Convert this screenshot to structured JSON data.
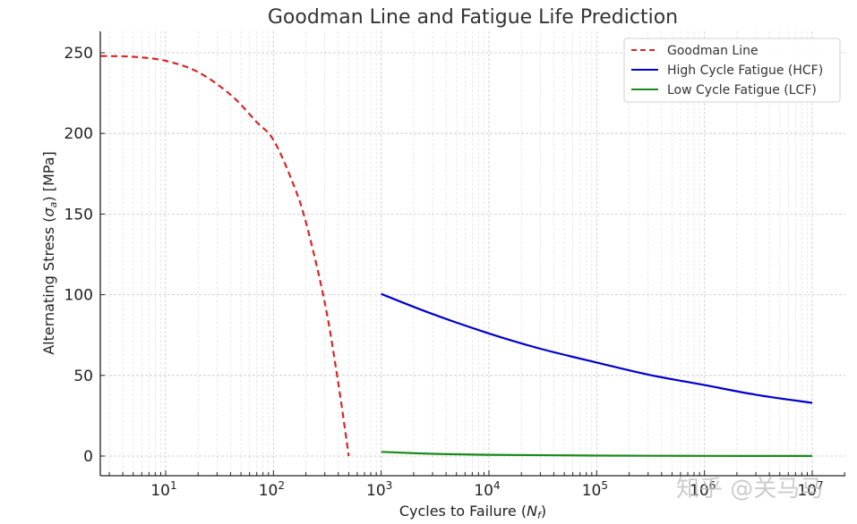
{
  "chart_data": {
    "type": "line",
    "title": "Goodman Line and Fatigue Life Prediction",
    "xlabel": "Cycles to Failure (N_f)",
    "ylabel": "Alternating Stress (σ_a) [MPa]",
    "xscale": "log",
    "xlim": [
      2.5,
      20000000
    ],
    "ylim": [
      -12,
      262
    ],
    "grid": true,
    "legend_position": "upper right",
    "x_ticks": [
      "10^1",
      "10^2",
      "10^3",
      "10^4",
      "10^5",
      "10^6",
      "10^7"
    ],
    "y_ticks": [
      0,
      50,
      100,
      150,
      200,
      250
    ],
    "series": [
      {
        "name": "Goodman Line",
        "color": "#d62728",
        "style": "dashed",
        "x": [
          2.5,
          5,
          10,
          20,
          40,
          70,
          100,
          150,
          200,
          300,
          400,
          500
        ],
        "y": [
          248,
          247.5,
          245,
          238,
          224,
          207,
          196,
          170,
          145,
          95,
          45,
          0
        ]
      },
      {
        "name": "High Cycle Fatigue (HCF)",
        "color": "#0000cc",
        "style": "solid",
        "x": [
          1000,
          3000,
          10000,
          30000,
          100000,
          300000,
          1000000,
          3000000,
          10000000
        ],
        "y": [
          100.5,
          88,
          76,
          66.5,
          58,
          50.5,
          44,
          38,
          33
        ]
      },
      {
        "name": "Low Cycle Fatigue (LCF)",
        "color": "#1a8a1a",
        "style": "solid",
        "x": [
          1000,
          3000,
          10000,
          100000,
          1000000,
          10000000
        ],
        "y": [
          2.6,
          1.4,
          0.8,
          0.3,
          0.1,
          0.05
        ]
      }
    ]
  },
  "title": "Goodman Line and Fatigue Life Prediction",
  "xaxis": {
    "label_main": "Cycles to Failure (",
    "label_var": "N",
    "label_sub": "f",
    "label_close": ")",
    "ticks": [
      {
        "base": "10",
        "exp": "1"
      },
      {
        "base": "10",
        "exp": "2"
      },
      {
        "base": "10",
        "exp": "3"
      },
      {
        "base": "10",
        "exp": "4"
      },
      {
        "base": "10",
        "exp": "5"
      },
      {
        "base": "10",
        "exp": "6"
      },
      {
        "base": "10",
        "exp": "7"
      }
    ]
  },
  "yaxis": {
    "label_main": "Alternating Stress (",
    "label_var": "σ",
    "label_sub": "a",
    "label_close": ") [MPa]",
    "ticks": [
      "0",
      "50",
      "100",
      "150",
      "200",
      "250"
    ]
  },
  "legend": {
    "items": [
      {
        "label": "Goodman Line",
        "color": "#d62728",
        "style": "dashed"
      },
      {
        "label": "High Cycle Fatigue (HCF)",
        "color": "#0000cc",
        "style": "solid"
      },
      {
        "label": "Low Cycle Fatigue (LCF)",
        "color": "#1a8a1a",
        "style": "solid"
      }
    ]
  },
  "watermark": "知乎 @关马马"
}
